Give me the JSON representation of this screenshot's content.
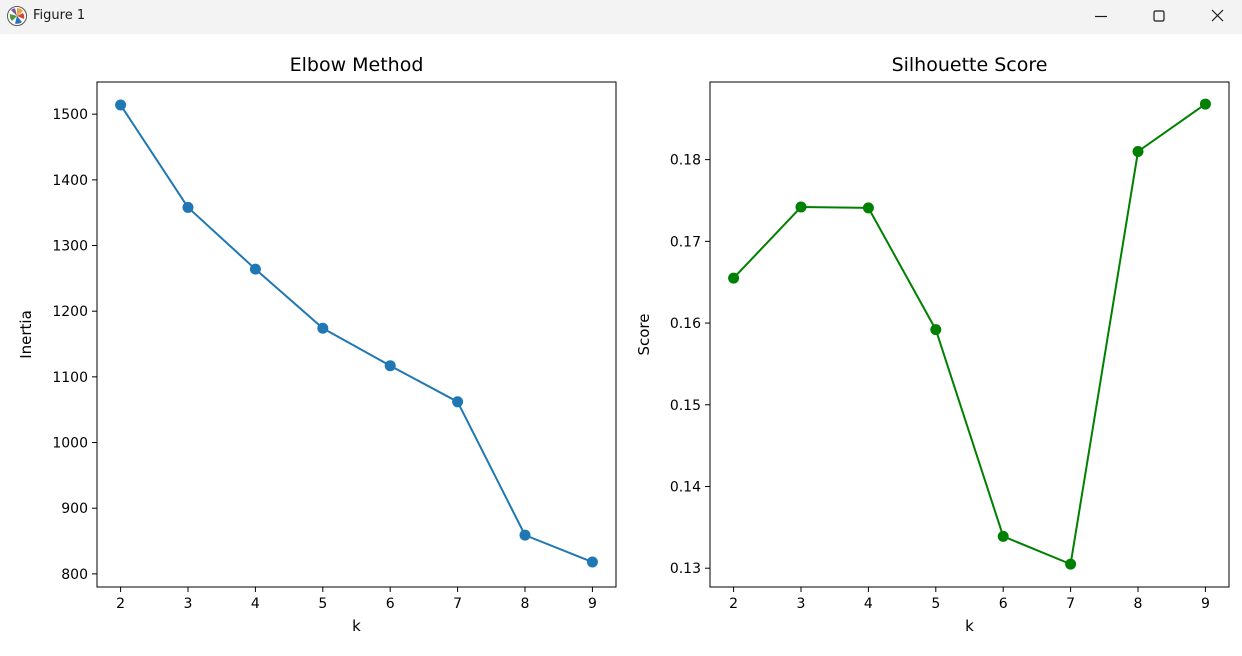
{
  "window": {
    "title": "Figure 1",
    "app_icon": "matplotlib-logo-icon",
    "controls": {
      "minimize_icon": "minimize-icon",
      "maximize_icon": "maximize-icon",
      "close_icon": "close-icon"
    }
  },
  "chart_data": [
    {
      "type": "line",
      "title": "Elbow Method",
      "xlabel": "k",
      "ylabel": "Inertia",
      "x": [
        2,
        3,
        4,
        5,
        6,
        7,
        8,
        9
      ],
      "xticks": [
        "2",
        "3",
        "4",
        "5",
        "6",
        "7",
        "8",
        "9"
      ],
      "xlim": [
        1.65,
        9.35
      ],
      "yticks": [
        "800",
        "900",
        "1000",
        "1100",
        "1200",
        "1300",
        "1400",
        "1500"
      ],
      "ylim": [
        780,
        1549
      ],
      "series": [
        {
          "values": [
            1514,
            1358,
            1264,
            1174,
            1117,
            1062,
            859,
            818
          ],
          "color": "#1f77b4",
          "marker": "circle"
        }
      ],
      "grid": false
    },
    {
      "type": "line",
      "title": "Silhouette Score",
      "xlabel": "k",
      "ylabel": "Score",
      "x": [
        2,
        3,
        4,
        5,
        6,
        7,
        8,
        9
      ],
      "xticks": [
        "2",
        "3",
        "4",
        "5",
        "6",
        "7",
        "8",
        "9"
      ],
      "xlim": [
        1.65,
        9.35
      ],
      "yticks": [
        "0.13",
        "0.14",
        "0.15",
        "0.16",
        "0.17",
        "0.18"
      ],
      "ylim": [
        0.1277,
        0.1895
      ],
      "series": [
        {
          "values": [
            0.1655,
            0.1742,
            0.1741,
            0.1592,
            0.1339,
            0.1305,
            0.181,
            0.1868
          ],
          "color": "#008000",
          "marker": "circle"
        }
      ],
      "grid": false
    }
  ]
}
